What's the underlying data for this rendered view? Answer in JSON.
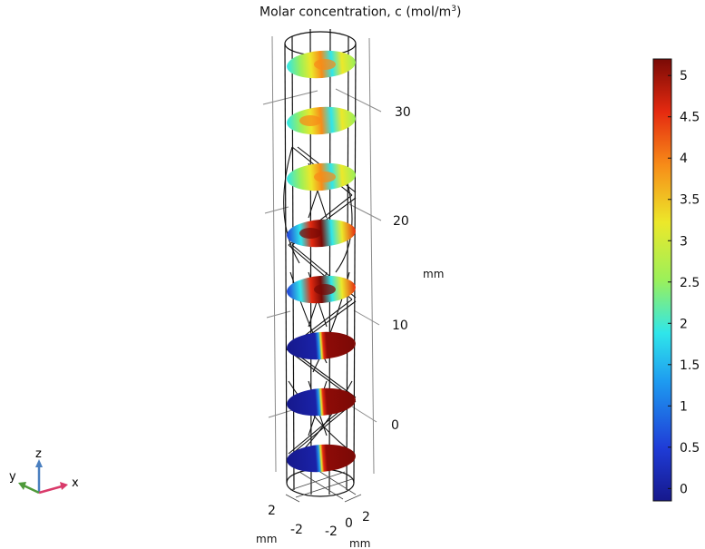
{
  "chart_data": {
    "type": "heatmap",
    "title_main": "Molar concentration, c (mol/m",
    "title_sup": "3",
    "title_tail": ")",
    "z_axis": {
      "label": "mm",
      "ticks": [
        {
          "value": 0,
          "label": "0"
        },
        {
          "value": 10,
          "label": "10"
        },
        {
          "value": 20,
          "label": "20"
        },
        {
          "value": 30,
          "label": "30"
        }
      ]
    },
    "base_axes": {
      "x_label": "mm",
      "y_label": "mm",
      "x_ticks": [
        "2",
        "-2"
      ],
      "y_ticks": [
        "-2",
        "0",
        "2"
      ]
    },
    "colorbar": {
      "min": -0.15,
      "max": 5.2,
      "ticks": [
        "0",
        "0.5",
        "1",
        "1.5",
        "2",
        "2.5",
        "3",
        "3.5",
        "4",
        "4.5",
        "5"
      ],
      "tick_values": [
        0,
        0.5,
        1,
        1.5,
        2,
        2.5,
        3,
        3.5,
        4,
        4.5,
        5
      ],
      "colormap": [
        "#16188c",
        "#1f3cd7",
        "#1e9bf0",
        "#2fe6ea",
        "#9bf05a",
        "#ece82a",
        "#f78c18",
        "#e52a10",
        "#7a0a06"
      ]
    },
    "slices": [
      {
        "z": 0,
        "pattern": "split"
      },
      {
        "z": 5,
        "pattern": "split"
      },
      {
        "z": 10,
        "pattern": "split"
      },
      {
        "z": 15,
        "pattern": "mixing"
      },
      {
        "z": 20,
        "pattern": "mixing"
      },
      {
        "z": 25,
        "pattern": "mixed"
      },
      {
        "z": 30,
        "pattern": "mixed"
      },
      {
        "z": 35,
        "pattern": "mixed"
      }
    ],
    "triad": {
      "x": "x",
      "y": "y",
      "z": "z"
    }
  }
}
